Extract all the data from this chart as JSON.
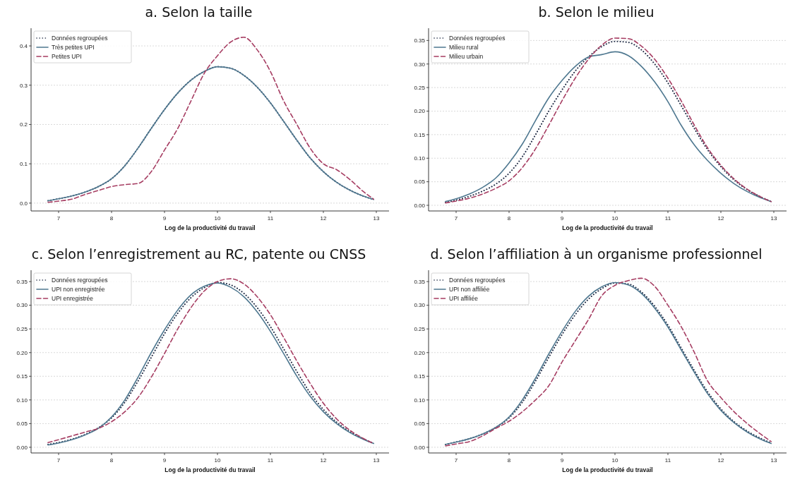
{
  "chart_data": [
    {
      "type": "line",
      "title": "a. Selon la taille",
      "xlabel": "Log de la productivité du travail",
      "x": [
        6.8,
        7,
        7.25,
        7.5,
        7.75,
        8,
        8.25,
        8.5,
        8.75,
        9,
        9.25,
        9.5,
        9.75,
        10,
        10.25,
        10.5,
        10.75,
        11,
        11.25,
        11.5,
        11.75,
        12,
        12.25,
        12.5,
        12.75,
        12.95
      ],
      "xlim": [
        6.48,
        13.24
      ],
      "xticks": [
        7,
        8,
        9,
        10,
        11,
        12,
        13
      ],
      "ylim": [
        -0.02,
        0.445
      ],
      "yticks": [
        {
          "value": 0,
          "label": "0.0"
        },
        {
          "value": 0.1,
          "label": "0.1"
        },
        {
          "value": 0.2,
          "label": "0.2"
        },
        {
          "value": 0.3,
          "label": "0.3"
        },
        {
          "value": 0.4,
          "label": "0.4"
        }
      ],
      "grid": "y",
      "legend": "top left",
      "series": [
        {
          "name": "Données regroupées",
          "color": "#1f2a44",
          "line_style": "dotted",
          "values": [
            0.006,
            0.011,
            0.018,
            0.028,
            0.042,
            0.062,
            0.095,
            0.14,
            0.19,
            0.238,
            0.28,
            0.313,
            0.335,
            0.347,
            0.343,
            0.325,
            0.295,
            0.255,
            0.208,
            0.16,
            0.115,
            0.08,
            0.053,
            0.033,
            0.018,
            0.009
          ]
        },
        {
          "name": "Très petites UPI",
          "color": "#4f7890",
          "line_style": "solid",
          "values": [
            0.006,
            0.011,
            0.018,
            0.028,
            0.042,
            0.062,
            0.095,
            0.14,
            0.19,
            0.238,
            0.28,
            0.313,
            0.335,
            0.347,
            0.343,
            0.325,
            0.295,
            0.255,
            0.208,
            0.16,
            0.115,
            0.08,
            0.053,
            0.033,
            0.018,
            0.009
          ]
        },
        {
          "name": "Petites UPI",
          "color": "#a63d62",
          "line_style": "dashed",
          "values": [
            0.002,
            0.005,
            0.01,
            0.022,
            0.032,
            0.042,
            0.047,
            0.05,
            0.08,
            0.135,
            0.19,
            0.26,
            0.33,
            0.375,
            0.41,
            0.422,
            0.39,
            0.335,
            0.26,
            0.2,
            0.14,
            0.1,
            0.085,
            0.06,
            0.03,
            0.01
          ]
        }
      ]
    },
    {
      "type": "line",
      "title": "b. Selon le milieu",
      "xlabel": "Log de la productivité du travail",
      "x": [
        6.8,
        7,
        7.25,
        7.5,
        7.75,
        8,
        8.25,
        8.5,
        8.75,
        9,
        9.25,
        9.5,
        9.75,
        10,
        10.25,
        10.5,
        10.75,
        11,
        11.25,
        11.5,
        11.75,
        12,
        12.25,
        12.5,
        12.75,
        12.95
      ],
      "xlim": [
        6.48,
        13.24
      ],
      "xticks": [
        7,
        8,
        9,
        10,
        11,
        12,
        13
      ],
      "ylim": [
        -0.012,
        0.376
      ],
      "yticks": [
        {
          "value": 0,
          "label": "0.00"
        },
        {
          "value": 0.05,
          "label": "0.05"
        },
        {
          "value": 0.1,
          "label": "0.10"
        },
        {
          "value": 0.15,
          "label": "0.15"
        },
        {
          "value": 0.2,
          "label": "0.20"
        },
        {
          "value": 0.25,
          "label": "0.25"
        },
        {
          "value": 0.3,
          "label": "0.30"
        },
        {
          "value": 0.35,
          "label": "0.35"
        }
      ],
      "grid": "y",
      "legend": "top left",
      "series": [
        {
          "name": "Données regroupées",
          "color": "#1f2a44",
          "line_style": "dotted",
          "values": [
            0.006,
            0.011,
            0.019,
            0.03,
            0.045,
            0.068,
            0.103,
            0.15,
            0.2,
            0.245,
            0.285,
            0.315,
            0.337,
            0.348,
            0.346,
            0.33,
            0.3,
            0.26,
            0.212,
            0.163,
            0.118,
            0.082,
            0.054,
            0.033,
            0.018,
            0.008
          ]
        },
        {
          "name": "Milieu rural",
          "color": "#4f7890",
          "line_style": "solid",
          "values": [
            0.008,
            0.014,
            0.024,
            0.038,
            0.058,
            0.09,
            0.13,
            0.18,
            0.228,
            0.265,
            0.295,
            0.315,
            0.32,
            0.326,
            0.318,
            0.295,
            0.262,
            0.22,
            0.17,
            0.128,
            0.095,
            0.068,
            0.046,
            0.029,
            0.016,
            0.008
          ]
        },
        {
          "name": "Milieu urbain",
          "color": "#a63d62",
          "line_style": "dashed",
          "values": [
            0.005,
            0.009,
            0.015,
            0.024,
            0.036,
            0.052,
            0.08,
            0.12,
            0.17,
            0.222,
            0.27,
            0.31,
            0.34,
            0.355,
            0.354,
            0.338,
            0.31,
            0.27,
            0.222,
            0.17,
            0.122,
            0.085,
            0.056,
            0.034,
            0.018,
            0.008
          ]
        }
      ]
    },
    {
      "type": "line",
      "title": "c. Selon l’enregistrement au RC, patente ou CNSS",
      "xlabel": "Log de la productivité du travail",
      "x": [
        6.8,
        7,
        7.25,
        7.5,
        7.75,
        8,
        8.25,
        8.5,
        8.75,
        9,
        9.25,
        9.5,
        9.75,
        10,
        10.25,
        10.5,
        10.75,
        11,
        11.25,
        11.5,
        11.75,
        12,
        12.25,
        12.5,
        12.75,
        12.95
      ],
      "xlim": [
        6.48,
        13.24
      ],
      "xticks": [
        7,
        8,
        9,
        10,
        11,
        12,
        13
      ],
      "ylim": [
        -0.012,
        0.374
      ],
      "yticks": [
        {
          "value": 0,
          "label": "0.00"
        },
        {
          "value": 0.05,
          "label": "0.05"
        },
        {
          "value": 0.1,
          "label": "0.10"
        },
        {
          "value": 0.15,
          "label": "0.15"
        },
        {
          "value": 0.2,
          "label": "0.20"
        },
        {
          "value": 0.25,
          "label": "0.25"
        },
        {
          "value": 0.3,
          "label": "0.30"
        },
        {
          "value": 0.35,
          "label": "0.35"
        }
      ],
      "grid": "y",
      "legend": "top left",
      "series": [
        {
          "name": "Données regroupées",
          "color": "#1f2a44",
          "line_style": "dotted",
          "values": [
            0.006,
            0.01,
            0.017,
            0.027,
            0.041,
            0.062,
            0.095,
            0.14,
            0.19,
            0.24,
            0.283,
            0.316,
            0.337,
            0.348,
            0.343,
            0.325,
            0.295,
            0.255,
            0.208,
            0.16,
            0.115,
            0.08,
            0.053,
            0.033,
            0.018,
            0.008
          ]
        },
        {
          "name": "UPI non enregistrée",
          "color": "#4f7890",
          "line_style": "solid",
          "values": [
            0.005,
            0.009,
            0.016,
            0.026,
            0.04,
            0.064,
            0.1,
            0.148,
            0.2,
            0.248,
            0.29,
            0.322,
            0.34,
            0.347,
            0.338,
            0.318,
            0.286,
            0.245,
            0.198,
            0.15,
            0.108,
            0.075,
            0.05,
            0.031,
            0.017,
            0.008
          ]
        },
        {
          "name": "UPI enregistrée",
          "color": "#a63d62",
          "line_style": "dashed",
          "values": [
            0.01,
            0.016,
            0.024,
            0.032,
            0.04,
            0.054,
            0.075,
            0.105,
            0.148,
            0.198,
            0.25,
            0.295,
            0.33,
            0.35,
            0.356,
            0.345,
            0.318,
            0.28,
            0.232,
            0.182,
            0.135,
            0.093,
            0.06,
            0.036,
            0.019,
            0.008
          ]
        }
      ]
    },
    {
      "type": "line",
      "title": "d. Selon l’affiliation à un organisme professionnel",
      "xlabel": "Log de la productivité du travail",
      "x": [
        6.8,
        7,
        7.25,
        7.5,
        7.75,
        8,
        8.25,
        8.5,
        8.75,
        9,
        9.25,
        9.5,
        9.75,
        10,
        10.25,
        10.5,
        10.75,
        11,
        11.25,
        11.5,
        11.75,
        12,
        12.25,
        12.5,
        12.75,
        12.95
      ],
      "xlim": [
        6.48,
        13.24
      ],
      "xticks": [
        7,
        8,
        9,
        10,
        11,
        12,
        13
      ],
      "ylim": [
        -0.012,
        0.374
      ],
      "yticks": [
        {
          "value": 0,
          "label": "0.00"
        },
        {
          "value": 0.05,
          "label": "0.05"
        },
        {
          "value": 0.1,
          "label": "0.10"
        },
        {
          "value": 0.15,
          "label": "0.15"
        },
        {
          "value": 0.2,
          "label": "0.20"
        },
        {
          "value": 0.25,
          "label": "0.25"
        },
        {
          "value": 0.3,
          "label": "0.30"
        },
        {
          "value": 0.35,
          "label": "0.35"
        }
      ],
      "grid": "y",
      "legend": "top left",
      "series": [
        {
          "name": "Données regroupées",
          "color": "#1f2a44",
          "line_style": "dotted",
          "values": [
            0.006,
            0.011,
            0.018,
            0.028,
            0.042,
            0.062,
            0.095,
            0.14,
            0.19,
            0.238,
            0.28,
            0.313,
            0.335,
            0.347,
            0.345,
            0.328,
            0.298,
            0.258,
            0.21,
            0.162,
            0.117,
            0.081,
            0.054,
            0.034,
            0.019,
            0.009
          ]
        },
        {
          "name": "UPI non affiliée",
          "color": "#4f7890",
          "line_style": "solid",
          "values": [
            0.006,
            0.011,
            0.018,
            0.028,
            0.042,
            0.064,
            0.1,
            0.146,
            0.197,
            0.245,
            0.287,
            0.319,
            0.339,
            0.348,
            0.343,
            0.325,
            0.294,
            0.254,
            0.206,
            0.158,
            0.113,
            0.078,
            0.052,
            0.032,
            0.017,
            0.008
          ]
        },
        {
          "name": "UPI affiliée",
          "color": "#a63d62",
          "line_style": "dashed",
          "values": [
            0.003,
            0.007,
            0.012,
            0.024,
            0.04,
            0.055,
            0.075,
            0.1,
            0.13,
            0.18,
            0.225,
            0.27,
            0.32,
            0.342,
            0.352,
            0.357,
            0.34,
            0.3,
            0.255,
            0.2,
            0.14,
            0.105,
            0.075,
            0.05,
            0.028,
            0.012
          ]
        }
      ]
    }
  ]
}
